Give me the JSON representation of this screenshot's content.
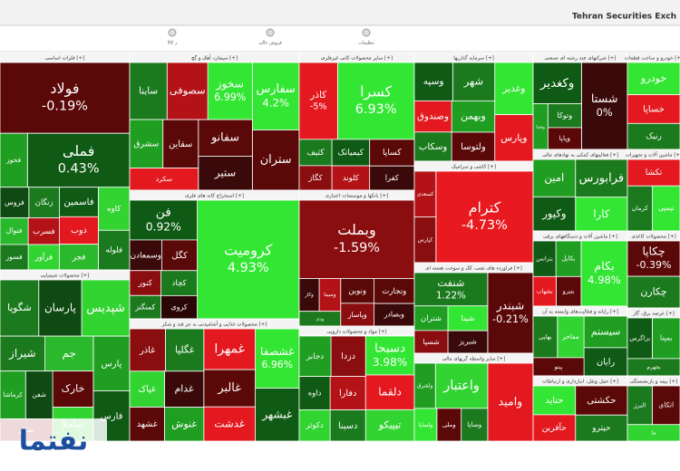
{
  "header": {
    "title": "Tehran Securities Exch"
  },
  "toolbar": [
    {
      "label": "ر کالا"
    },
    {
      "label": "فروش حالی"
    },
    {
      "label": "تنظیمات"
    }
  ],
  "watermark": "نفتما",
  "sectors": [
    {
      "name": "فلزات اساسی [+]",
      "tiles": [
        {
          "label": "فولاد",
          "change": "-0.19%",
          "color": "#5a0808"
        },
        {
          "label": "فملی",
          "change": "0.43%",
          "color": "#0f5a14"
        },
        {
          "label": "فخوز",
          "color": "#1f9e22"
        },
        {
          "label": "کاوه",
          "color": "#32d432"
        },
        {
          "label": "فلوله",
          "color": "#1b7a1e"
        },
        {
          "label": "فاسمین",
          "color": "#0f5a14"
        },
        {
          "label": "ذوب",
          "color": "#e3191f"
        },
        {
          "label": "فجر",
          "color": "#2ab82d"
        },
        {
          "label": "زنگان",
          "color": "#1b7a1e"
        },
        {
          "label": "فروس",
          "color": "#0f4a12"
        },
        {
          "label": "فسرب",
          "color": "#b31217"
        },
        {
          "label": "فرآور",
          "color": "#32d432"
        },
        {
          "label": "فنوال",
          "color": "#2ab82d"
        },
        {
          "label": "فسوز",
          "color": "#1b7a1e"
        }
      ]
    },
    {
      "name": "محصولات شیمیایی [+]",
      "tiles": [
        {
          "label": "شپدیس",
          "color": "#32d432"
        },
        {
          "label": "پارسان",
          "color": "#0f4a12"
        },
        {
          "label": "شگویا",
          "color": "#1b7a1e"
        },
        {
          "label": "پارس",
          "color": "#1f9e22"
        },
        {
          "label": "فارس",
          "color": "#0f5a14"
        },
        {
          "label": "جم",
          "color": "#2ab82d"
        },
        {
          "label": "شیراز",
          "color": "#1b7a1e"
        },
        {
          "label": "خارک",
          "color": "#5a0808"
        },
        {
          "label": "شاملا",
          "color": "#32d432"
        },
        {
          "label": "شفن",
          "color": "#0f4a12"
        },
        {
          "label": "کرماشا",
          "color": "#1f9e22"
        },
        {
          "label": "شکلر",
          "color": "#8a0d10"
        }
      ]
    },
    {
      "name": "سیمان، آهک و گچ [+]",
      "tiles": [
        {
          "label": "سفارس",
          "change": "4.2%",
          "color": "#33e633"
        },
        {
          "label": "ستران",
          "color": "#5a0808"
        },
        {
          "label": "سخوز",
          "change": "6.99%",
          "color": "#33e633"
        },
        {
          "label": "سصوفی",
          "color": "#b31217"
        },
        {
          "label": "ساینا",
          "color": "#1b7a1e"
        },
        {
          "label": "سفانو",
          "color": "#5a0808"
        },
        {
          "label": "ستیر",
          "color": "#3a0a0a"
        },
        {
          "label": "سقاین",
          "color": "#5a0808"
        },
        {
          "label": "سشرق",
          "color": "#1f9e22"
        },
        {
          "label": "سکرد",
          "color": "#e3191f"
        }
      ]
    },
    {
      "name": "استخراج کانه های فلزی [+]",
      "tiles": [
        {
          "label": "کرومیت",
          "change": "4.93%",
          "color": "#33e633"
        },
        {
          "label": "فن",
          "change": "0.92%",
          "color": "#0f5a14"
        },
        {
          "label": "کگل",
          "color": "#5a0808"
        },
        {
          "label": "وسمعادن",
          "color": "#3a0a0a"
        },
        {
          "label": "کچاد",
          "color": "#1b7a1e"
        },
        {
          "label": "کروی",
          "color": "#2a0606"
        },
        {
          "label": "کنور",
          "color": "#8a0d10"
        },
        {
          "label": "کمنگنز",
          "color": "#1b7a1e"
        }
      ]
    },
    {
      "name": "محصولات غذایی و آشامیدنی به جز قند و شکر [+]",
      "tiles": [
        {
          "label": "غشصفا",
          "change": "6.96%",
          "color": "#33e633"
        },
        {
          "label": "غبشهر",
          "color": "#0f5a14"
        },
        {
          "label": "غمهرا",
          "color": "#e3191f"
        },
        {
          "label": "غالبر",
          "color": "#5a0808"
        },
        {
          "label": "غدشت",
          "color": "#e3191f"
        },
        {
          "label": "غگلپا",
          "color": "#1b7a1e"
        },
        {
          "label": "غاذر",
          "color": "#8a0d10"
        },
        {
          "label": "غدام",
          "color": "#3a0a0a"
        },
        {
          "label": "غنوش",
          "color": "#1f9e22"
        },
        {
          "label": "غپاک",
          "color": "#32d432"
        },
        {
          "label": "غشهد",
          "color": "#5a0808"
        }
      ]
    },
    {
      "name": "سایر محصولات کانی غیرفلزی [+]",
      "tiles": [
        {
          "label": "کسرا",
          "change": "6.93%",
          "color": "#33e633"
        },
        {
          "label": "کاذر",
          "change": "-5%",
          "color": "#e3191f"
        },
        {
          "label": "کساپا",
          "color": "#5a0808"
        },
        {
          "label": "کفرا",
          "color": "#3a0a0a"
        },
        {
          "label": "کیمیاتک",
          "color": "#0f5a14"
        },
        {
          "label": "کلوند",
          "color": "#b31217"
        },
        {
          "label": "کثیف",
          "color": "#1b7a1e"
        },
        {
          "label": "کگاز",
          "color": "#8a0d10"
        }
      ]
    },
    {
      "name": "بانکها و موسسات اعتباری [+]",
      "tiles": [
        {
          "label": "وبملت",
          "change": "-1.59%",
          "color": "#8a0d10"
        },
        {
          "label": "وتجارت",
          "color": "#5a0808"
        },
        {
          "label": "وبصادر",
          "color": "#3a0a0a"
        },
        {
          "label": "ونوین",
          "color": "#5a0808"
        },
        {
          "label": "وپاسار",
          "color": "#8a0d10"
        },
        {
          "label": "وسینا",
          "color": "#b31217"
        },
        {
          "label": "وکار",
          "color": "#3a0a0a"
        },
        {
          "label": "ودی",
          "color": "#1b7a1e"
        }
      ]
    },
    {
      "name": "مواد و محصولات دارویی [+]",
      "tiles": [
        {
          "label": "دسبحا",
          "change": "3.98%",
          "color": "#33e633"
        },
        {
          "label": "دلقما",
          "color": "#e3191f"
        },
        {
          "label": "تیپیکو",
          "color": "#32d432"
        },
        {
          "label": "دزدا",
          "color": "#8a0d10"
        },
        {
          "label": "دجابر",
          "color": "#1f9e22"
        },
        {
          "label": "دفارا",
          "color": "#b31217"
        },
        {
          "label": "دسینا",
          "color": "#1b7a1e"
        },
        {
          "label": "داوه",
          "color": "#0f5a14"
        },
        {
          "label": "دکوثر",
          "color": "#32d432"
        }
      ]
    },
    {
      "name": "سرمایه گذاریها [+]",
      "tiles": [
        {
          "label": "وغدیر",
          "color": "#33e633"
        },
        {
          "label": "وپارس",
          "color": "#e3191f"
        },
        {
          "label": "شهر",
          "color": "#1b7a1e"
        },
        {
          "label": "وسپه",
          "color": "#0f5a14"
        },
        {
          "label": "وبهمن",
          "color": "#1f9e22"
        },
        {
          "label": "ولتوسا",
          "color": "#5a0808"
        },
        {
          "label": "وصندوق",
          "color": "#e3191f"
        },
        {
          "label": "وسکاب",
          "color": "#1b7a1e"
        }
      ]
    },
    {
      "name": "کاشی و سرامیک [+]",
      "tiles": [
        {
          "label": "کترام",
          "change": "-4.73%",
          "color": "#e8191f"
        },
        {
          "label": "کسعدی",
          "color": "#b31217"
        },
        {
          "label": "کپارس",
          "color": "#8a0d10"
        }
      ]
    },
    {
      "name": "فراورده های نفتی، کک و سوخت هسته ای [+]",
      "tiles": [
        {
          "label": "شبندر",
          "change": "-0.21%",
          "color": "#5a0808"
        },
        {
          "label": "شنفت",
          "change": "1.22%",
          "color": "#1b7a1e"
        },
        {
          "label": "شپنا",
          "color": "#33e633"
        },
        {
          "label": "شبریز",
          "color": "#3a0a0a"
        },
        {
          "label": "شتران",
          "color": "#1f9e22"
        },
        {
          "label": "شسپا",
          "color": "#8a0d10"
        }
      ]
    },
    {
      "name": "سایر واسطه گریهای مالی [+]",
      "tiles": [
        {
          "label": "وامید",
          "color": "#e3191f"
        },
        {
          "label": "واعتبار",
          "color": "#32d432"
        },
        {
          "label": "ولشرق",
          "color": "#1f9e22"
        },
        {
          "label": "وساپا",
          "color": "#1b7a1e"
        },
        {
          "label": "وملی",
          "color": "#5a0808"
        },
        {
          "label": "ولساپا",
          "color": "#33e633"
        }
      ]
    },
    {
      "name": "شرکتهای چند رشته ای صنعتی [+]",
      "tiles": [
        {
          "label": "شستا",
          "change": "0%",
          "color": "#3a0a0a"
        },
        {
          "label": "وکغدیر",
          "color": "#0f5a14"
        },
        {
          "label": "وتوکا",
          "color": "#1b7a1e"
        },
        {
          "label": "وپاپا",
          "color": "#5a0808"
        },
        {
          "label": "وصنا",
          "color": "#1f9e22"
        }
      ]
    },
    {
      "name": "فعالیتهای کمکی به نهادهای مالی [+]",
      "tiles": [
        {
          "label": "فرابورس",
          "color": "#1b7a1e"
        },
        {
          "label": "کارا",
          "color": "#33e633"
        },
        {
          "label": "امین",
          "color": "#1f9e22"
        },
        {
          "label": "وکپور",
          "color": "#0f5a14"
        }
      ]
    },
    {
      "name": "ماشین آلات و دستگاههای برقی [+]",
      "tiles": [
        {
          "label": "بکام",
          "change": "4.98%",
          "color": "#33e633"
        },
        {
          "label": "بکابل",
          "color": "#1f9e22"
        },
        {
          "label": "بترانس",
          "color": "#0f5a14"
        },
        {
          "label": "بنیرو",
          "color": "#5a0808"
        },
        {
          "label": "بشهاب",
          "color": "#e3191f"
        }
      ]
    },
    {
      "name": "رایانه و فعالیت‌های وابسته به آن [+]",
      "tiles": [
        {
          "label": "سیستم",
          "color": "#1f9e22"
        },
        {
          "label": "رایان",
          "color": "#0f5a14"
        },
        {
          "label": "مفاخر",
          "color": "#32d432"
        },
        {
          "label": "بهاپی",
          "color": "#1b7a1e"
        },
        {
          "label": "پیتو",
          "color": "#5a0808"
        }
      ]
    },
    {
      "name": "حمل ونقل، انبارداری و ارتباطات [+]",
      "tiles": [
        {
          "label": "حکشتی",
          "color": "#5a0808"
        },
        {
          "label": "حپترو",
          "color": "#1b7a1e"
        },
        {
          "label": "حتاید",
          "color": "#33e633"
        },
        {
          "label": "حآفرین",
          "color": "#e3191f"
        }
      ]
    },
    {
      "name": "خودرو و ساخت قطعات [+]",
      "tiles": [
        {
          "label": "خودرو",
          "color": "#33e633"
        },
        {
          "label": "خساپا",
          "color": "#e3191f"
        },
        {
          "label": "رنیک",
          "color": "#1b7a1e"
        }
      ]
    },
    {
      "name": "ماشین آلات و تجهیزات [+]",
      "tiles": [
        {
          "label": "تکشا",
          "color": "#e3191f"
        },
        {
          "label": "تپمپی",
          "color": "#33e633"
        },
        {
          "label": "کرمان",
          "color": "#1b7a1e"
        }
      ]
    },
    {
      "name": "محصولات کاغذی [+]",
      "tiles": [
        {
          "label": "چکاپا",
          "change": "-0.39%",
          "color": "#5a0808"
        },
        {
          "label": "چکارن",
          "color": "#1b7a1e"
        }
      ]
    },
    {
      "name": "عرضه برق، گاز [+]",
      "tiles": [
        {
          "label": "بمپنا",
          "color": "#1f9e22"
        },
        {
          "label": "بزاگرس",
          "color": "#0f5a14"
        },
        {
          "label": "بجهرم",
          "color": "#1b7a1e"
        }
      ]
    },
    {
      "name": "بیمه و بازنشستگی [+]",
      "tiles": [
        {
          "label": "اتکای",
          "color": "#5a0808"
        },
        {
          "label": "البرز",
          "color": "#1b7a1e"
        },
        {
          "label": "ما",
          "color": "#32d432"
        }
      ]
    }
  ]
}
